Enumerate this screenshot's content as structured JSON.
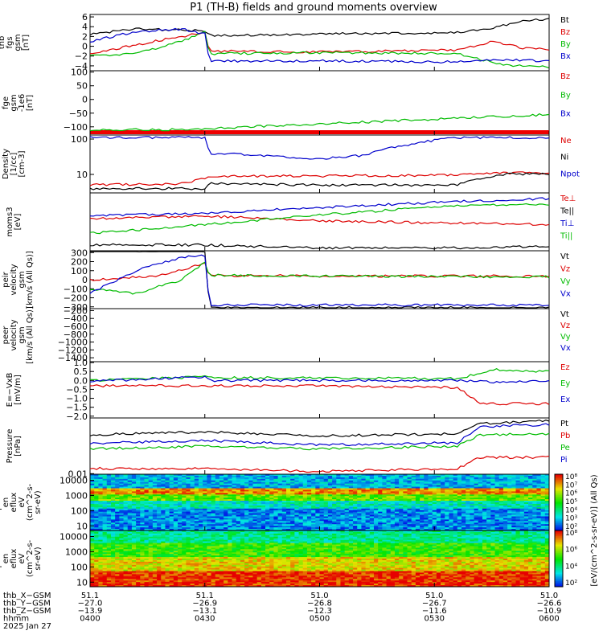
{
  "title": "P1 (TH-B) fields and ground moments overview",
  "chart_data": [
    {
      "type": "line",
      "ylabel": [
        "thb",
        "fgs",
        "gsm",
        "[nT]"
      ],
      "yticks": [
        "6",
        "4",
        "2",
        "0",
        "−2",
        "−4"
      ],
      "ylim": [
        -5,
        6.5
      ],
      "series": [
        {
          "name": "Bt",
          "color": "#000000",
          "x": [
            0,
            0.1,
            0.25,
            0.26,
            0.5,
            0.8,
            0.85,
            0.95,
            1
          ],
          "y": [
            2.5,
            3.5,
            3.2,
            2.2,
            2.5,
            2.8,
            3.3,
            5.2,
            5.6
          ]
        },
        {
          "name": "Bz",
          "color": "#dd0000",
          "x": [
            0,
            0.15,
            0.25,
            0.26,
            0.5,
            0.8,
            0.88,
            0.95,
            1
          ],
          "y": [
            -1.5,
            1.2,
            2.8,
            -1.0,
            -1.2,
            -0.8,
            1.0,
            -0.5,
            -0.7
          ]
        },
        {
          "name": "By",
          "color": "#00bb00",
          "x": [
            0,
            0.1,
            0.2,
            0.25,
            0.26,
            0.5,
            0.8,
            0.9,
            1
          ],
          "y": [
            -2.0,
            -1.5,
            1.0,
            3.0,
            -1.5,
            -1.3,
            -1.5,
            -3.8,
            -4.2
          ]
        },
        {
          "name": "Bx",
          "color": "#0000cc",
          "x": [
            0,
            0.1,
            0.2,
            0.25,
            0.26,
            0.5,
            0.8,
            0.9,
            1
          ],
          "y": [
            1.0,
            3.0,
            3.5,
            2.5,
            -3.0,
            -3.0,
            -3.2,
            -2.8,
            -3.0
          ]
        }
      ]
    },
    {
      "type": "line",
      "ylabel": [
        "thb",
        "fge",
        "gsm",
        "-1e6",
        "[nT]"
      ],
      "yticks": [
        "100",
        "50",
        "0",
        "−50",
        "−100"
      ],
      "ylim": [
        -130,
        105
      ],
      "series": [
        {
          "name": "Bz",
          "color": "#dd0000",
          "x": [],
          "y": []
        },
        {
          "name": "By",
          "color": "#00bb00",
          "x": [
            0.2,
            1
          ],
          "y": [
            -110,
            -55
          ]
        },
        {
          "name": "Bx",
          "color": "#0000cc",
          "x": [],
          "y": []
        }
      ]
    },
    {
      "type": "line",
      "ylabel": [
        "Density",
        "[1/cc]",
        "[cm-3]"
      ],
      "yticks": [
        "100",
        "10"
      ],
      "ylim": [
        3,
        130
      ],
      "series": [
        {
          "name": "Ne",
          "color": "#dd0000",
          "x": [
            0,
            0.2,
            0.25,
            0.26,
            0.5,
            0.8,
            0.9,
            1
          ],
          "y": [
            5,
            5.5,
            7.5,
            9,
            9,
            9.5,
            11,
            11
          ]
        },
        {
          "name": "Ni",
          "color": "#000000",
          "x": [
            0,
            0.25,
            0.26,
            0.5,
            0.8,
            0.9,
            1
          ],
          "y": [
            4,
            4,
            5.5,
            5,
            5,
            10,
            10.5
          ]
        },
        {
          "name": "Npot",
          "color": "#0000cc",
          "x": [
            0.25,
            0.26,
            0.5,
            0.6,
            0.8
          ],
          "y": [
            110,
            40,
            28,
            35,
            110
          ]
        }
      ]
    },
    {
      "type": "line",
      "ylabel": [
        "moms3",
        "[eV]"
      ],
      "yticks": [],
      "ylim": [
        0,
        1
      ],
      "series": [
        {
          "name": "Te⊥",
          "color": "#dd0000",
          "x": [
            0,
            0.25,
            0.5,
            1
          ],
          "y": [
            0.55,
            0.6,
            0.52,
            0.45
          ]
        },
        {
          "name": "Te||",
          "color": "#000000",
          "x": [
            0,
            0.25,
            0.5,
            0.8,
            1
          ],
          "y": [
            0.1,
            0.1,
            0.05,
            0.05,
            0.08
          ]
        },
        {
          "name": "Ti⊥",
          "color": "#0000cc",
          "x": [
            0,
            0.25,
            0.5,
            0.8,
            1
          ],
          "y": [
            0.6,
            0.65,
            0.75,
            0.85,
            0.9
          ]
        },
        {
          "name": "Ti||",
          "color": "#00bb00",
          "x": [
            0,
            0.25,
            0.5,
            0.8,
            1
          ],
          "y": [
            0.3,
            0.45,
            0.62,
            0.78,
            0.8
          ]
        }
      ]
    },
    {
      "type": "line",
      "ylabel": [
        "thb",
        "peir",
        "velocity",
        "gsm",
        "[km/s (All Qs)]"
      ],
      "yticks": [
        "300",
        "200",
        "100",
        "0",
        "−100",
        "−200",
        "−300"
      ],
      "ylim": [
        -320,
        320
      ],
      "series": [
        {
          "name": "Vt",
          "color": "#000000",
          "x": [
            0,
            0.25,
            0.26,
            1
          ],
          "y": [
            320,
            320,
            -310,
            -310
          ]
        },
        {
          "name": "Vz",
          "color": "#dd0000",
          "x": [
            0,
            0.15,
            0.25,
            0.26,
            0.5,
            1
          ],
          "y": [
            0,
            40,
            180,
            50,
            40,
            40
          ]
        },
        {
          "name": "Vy",
          "color": "#00bb00",
          "x": [
            0,
            0.1,
            0.2,
            0.25,
            0.26,
            0.5,
            1
          ],
          "y": [
            -100,
            -150,
            0,
            200,
            50,
            40,
            30
          ]
        },
        {
          "name": "Vx",
          "color": "#0000cc",
          "x": [
            0,
            0.1,
            0.2,
            0.25,
            0.26,
            1
          ],
          "y": [
            -150,
            100,
            250,
            270,
            -280,
            -280
          ]
        }
      ]
    },
    {
      "type": "line",
      "ylabel": [
        "thb",
        "peer",
        "velocity",
        "gsm",
        "[km/s (All Qs)]"
      ],
      "yticks": [
        "−200",
        "−400",
        "−600",
        "−800",
        "−1000",
        "−1200",
        "−1400"
      ],
      "ylim": [
        -1500,
        -150
      ],
      "series": [
        {
          "name": "Vt",
          "color": "#000000",
          "x": [],
          "y": []
        },
        {
          "name": "Vz",
          "color": "#dd0000",
          "x": [],
          "y": []
        },
        {
          "name": "Vy",
          "color": "#00bb00",
          "x": [],
          "y": []
        },
        {
          "name": "Vx",
          "color": "#0000cc",
          "x": [],
          "y": []
        }
      ]
    },
    {
      "type": "line",
      "ylabel": [
        "E=−VxB",
        "[mV/m]"
      ],
      "yticks": [
        "1.0",
        "0.5",
        "0.0",
        "−0.5",
        "−1.0",
        "−1.5",
        "−2.0"
      ],
      "ylim": [
        -2.1,
        1.05
      ],
      "series": [
        {
          "name": "Ez",
          "color": "#dd0000",
          "x": [
            0,
            0.25,
            0.5,
            0.8,
            0.85,
            1
          ],
          "y": [
            -0.3,
            -0.3,
            -0.3,
            -0.4,
            -1.3,
            -1.3
          ]
        },
        {
          "name": "Ey",
          "color": "#00bb00",
          "x": [
            0,
            0.25,
            0.26,
            0.5,
            0.8,
            0.88,
            1
          ],
          "y": [
            0.0,
            0.2,
            0.15,
            0.15,
            0.1,
            0.6,
            0.5
          ]
        },
        {
          "name": "Ex",
          "color": "#0000cc",
          "x": [
            0,
            0.25,
            0.26,
            0.5,
            0.8,
            0.88,
            1
          ],
          "y": [
            -0.05,
            0.2,
            0.0,
            0.0,
            0.0,
            -0.1,
            0.0
          ]
        }
      ]
    },
    {
      "type": "line",
      "ylabel": [
        "Pressure",
        "[nPa]"
      ],
      "yticks": [
        "0.01"
      ],
      "ylim": [
        0,
        1
      ],
      "series": [
        {
          "name": "Pt",
          "color": "#000000",
          "x": [
            0,
            0.25,
            0.5,
            0.8,
            0.85,
            1
          ],
          "y": [
            0.7,
            0.75,
            0.68,
            0.72,
            0.9,
            0.95
          ]
        },
        {
          "name": "Pb",
          "color": "#dd0000",
          "x": [
            0,
            0.25,
            0.5,
            0.8,
            0.85,
            1
          ],
          "y": [
            0.1,
            0.1,
            0.05,
            0.1,
            0.3,
            0.3
          ]
        },
        {
          "name": "Pe",
          "color": "#00bb00",
          "x": [
            0,
            0.25,
            0.5,
            0.8,
            0.85,
            1
          ],
          "y": [
            0.45,
            0.5,
            0.45,
            0.5,
            0.7,
            0.72
          ]
        },
        {
          "name": "Pi",
          "color": "#0000cc",
          "x": [
            0,
            0.25,
            0.5,
            0.8,
            0.85,
            1
          ],
          "y": [
            0.55,
            0.6,
            0.52,
            0.56,
            0.85,
            0.88
          ]
        }
      ]
    },
    {
      "type": "heatmap",
      "ylabel": [
        "thb",
        "peir",
        "en",
        "eflux",
        "eV",
        "(cm^2-s-",
        "sr-eV)"
      ],
      "yticks": [
        "10000",
        "1000",
        "100",
        "10"
      ],
      "ylim": [
        5,
        25000
      ]
    },
    {
      "type": "heatmap",
      "ylabel": [
        "thb",
        "peer",
        "en",
        "eflux",
        "eV",
        "(cm^2-s-",
        "sr-eV)"
      ],
      "yticks": [
        "10000",
        "1000",
        "100",
        "10"
      ],
      "ylim": [
        5,
        25000
      ]
    }
  ],
  "colorbar_top": {
    "ticks": [
      "10⁸",
      "10⁷",
      "10⁶",
      "10⁵",
      "10⁴",
      "10³",
      "10²"
    ],
    "label": "[eV/(cm^2-s-sr-eV)] (All Qs)"
  },
  "colorbar_bottom": {
    "ticks": [
      "10⁸",
      "10⁶",
      "10⁴",
      "10²"
    ],
    "label": "[eV/(cm^2-s-sr-eV)]"
  },
  "xaxis": {
    "row_labels": [
      "thb_X−GSM",
      "thb_Y−GSM",
      "thb_Z−GSM",
      "hhmm",
      "2025 Jan 27"
    ],
    "columns": [
      [
        "51.1",
        "−27.0",
        "−13.9",
        "0400"
      ],
      [
        "51.1",
        "−26.9",
        "−13.1",
        "0430"
      ],
      [
        "51.0",
        "−26.8",
        "−12.3",
        "0500"
      ],
      [
        "51.0",
        "−26.7",
        "−11.6",
        "0530"
      ],
      [
        "51.0",
        "−26.6",
        "−10.9",
        "0600"
      ]
    ]
  }
}
